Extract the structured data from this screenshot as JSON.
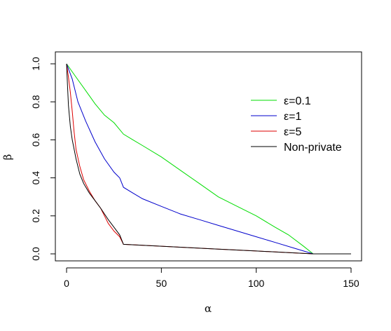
{
  "chart_data": {
    "type": "line",
    "title": "",
    "xlabel": "α",
    "ylabel": "β",
    "xlim": [
      0,
      150
    ],
    "ylim": [
      0,
      1
    ],
    "xticks": [
      0,
      50,
      100,
      150
    ],
    "yticks": [
      0.0,
      0.2,
      0.4,
      0.6,
      0.8,
      1.0
    ],
    "xtick_labels": [
      "0",
      "50",
      "100",
      "150"
    ],
    "ytick_labels": [
      "0.0",
      "0.2",
      "0.4",
      "0.6",
      "0.8",
      "1.0"
    ],
    "grid": false,
    "legend_position": "top-right",
    "series": [
      {
        "name": "ε=0.1",
        "color": "#00dd00",
        "x": [
          0,
          5,
          10,
          15,
          20,
          25,
          30,
          35,
          40,
          50,
          60,
          70,
          80,
          90,
          100,
          110,
          117,
          125,
          130,
          150
        ],
        "y": [
          1.0,
          0.93,
          0.86,
          0.79,
          0.73,
          0.69,
          0.63,
          0.6,
          0.57,
          0.51,
          0.44,
          0.37,
          0.3,
          0.25,
          0.2,
          0.14,
          0.1,
          0.04,
          0.0,
          0.0
        ]
      },
      {
        "name": "ε=1",
        "color": "#0000cc",
        "x": [
          0,
          3,
          6,
          10,
          15,
          20,
          25,
          28,
          30,
          35,
          40,
          50,
          60,
          70,
          80,
          90,
          100,
          110,
          120,
          130,
          150
        ],
        "y": [
          1.0,
          0.92,
          0.8,
          0.7,
          0.59,
          0.5,
          0.43,
          0.4,
          0.35,
          0.32,
          0.29,
          0.25,
          0.21,
          0.18,
          0.15,
          0.12,
          0.09,
          0.06,
          0.03,
          0.0,
          0.0
        ]
      },
      {
        "name": "ε=5",
        "color": "#dd0000",
        "x": [
          0,
          1,
          2,
          3,
          4,
          5,
          7,
          9,
          12,
          15,
          18,
          20,
          22,
          25,
          28,
          30,
          40,
          60,
          80,
          100,
          120,
          130,
          150
        ],
        "y": [
          1.0,
          0.93,
          0.85,
          0.75,
          0.64,
          0.55,
          0.46,
          0.39,
          0.33,
          0.28,
          0.24,
          0.2,
          0.16,
          0.12,
          0.09,
          0.05,
          0.045,
          0.035,
          0.025,
          0.015,
          0.005,
          0.0,
          0.0
        ]
      },
      {
        "name": "Non-private",
        "color": "#000000",
        "x": [
          0,
          0.5,
          1,
          2,
          3,
          4,
          5,
          7,
          9,
          12,
          15,
          18,
          20,
          22,
          25,
          28,
          30,
          40,
          60,
          80,
          100,
          120,
          130,
          150
        ],
        "y": [
          1.0,
          0.88,
          0.78,
          0.67,
          0.6,
          0.55,
          0.5,
          0.42,
          0.37,
          0.32,
          0.28,
          0.24,
          0.21,
          0.18,
          0.14,
          0.1,
          0.05,
          0.045,
          0.035,
          0.025,
          0.015,
          0.005,
          0.0,
          0.0
        ]
      }
    ]
  }
}
